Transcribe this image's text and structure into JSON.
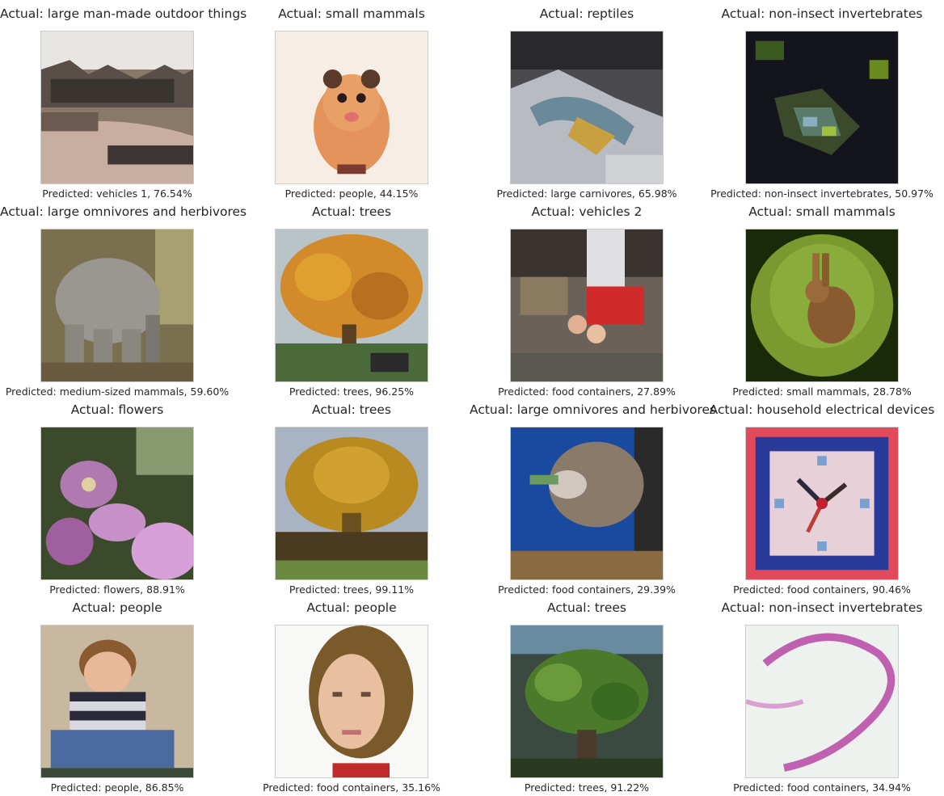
{
  "grid": [
    {
      "actual": "Actual: large man-made outdoor things",
      "predicted": "Predicted: vehicles 1, 76.54%",
      "image": "building-by-lake-thumbnail"
    },
    {
      "actual": "Actual: small mammals",
      "predicted": "Predicted: people, 44.15%",
      "image": "hamster-thumbnail"
    },
    {
      "actual": "Actual: reptiles",
      "predicted": "Predicted: large carnivores, 65.98%",
      "image": "lizard-on-rock-thumbnail"
    },
    {
      "actual": "Actual: non-insect invertebrates",
      "predicted": "Predicted: non-insect invertebrates, 50.97%",
      "image": "crab-in-dark-thumbnail"
    },
    {
      "actual": "Actual: large omnivores and herbivores",
      "predicted": "Predicted: medium-sized mammals, 59.60%",
      "image": "elephant-thumbnail"
    },
    {
      "actual": "Actual: trees",
      "predicted": "Predicted: trees, 96.25%",
      "image": "autumn-tree-thumbnail"
    },
    {
      "actual": "Actual: vehicles 2",
      "predicted": "Predicted: food containers, 27.89%",
      "image": "red-tractor-thumbnail"
    },
    {
      "actual": "Actual: small mammals",
      "predicted": "Predicted: small mammals, 28.78%",
      "image": "rabbit-on-grass-thumbnail"
    },
    {
      "actual": "Actual: flowers",
      "predicted": "Predicted: flowers, 88.91%",
      "image": "pink-flowers-thumbnail"
    },
    {
      "actual": "Actual: trees",
      "predicted": "Predicted: trees, 99.11%",
      "image": "palm-tree-thumbnail"
    },
    {
      "actual": "Actual: large omnivores and herbivores",
      "predicted": "Predicted: food containers, 29.39%",
      "image": "animal-on-blue-thumbnail"
    },
    {
      "actual": "Actual: household electrical devices",
      "predicted": "Predicted: food containers, 90.46%",
      "image": "clock-thumbnail"
    },
    {
      "actual": "Actual: people",
      "predicted": "Predicted: people, 86.85%",
      "image": "boy-striped-shirt-thumbnail"
    },
    {
      "actual": "Actual: people",
      "predicted": "Predicted: food containers, 35.16%",
      "image": "girl-portrait-thumbnail"
    },
    {
      "actual": "Actual: trees",
      "predicted": "Predicted: trees, 91.22%",
      "image": "bonsai-tree-thumbnail"
    },
    {
      "actual": "Actual: non-insect invertebrates",
      "predicted": "Predicted: food containers, 34.94%",
      "image": "pink-worm-thumbnail"
    }
  ]
}
